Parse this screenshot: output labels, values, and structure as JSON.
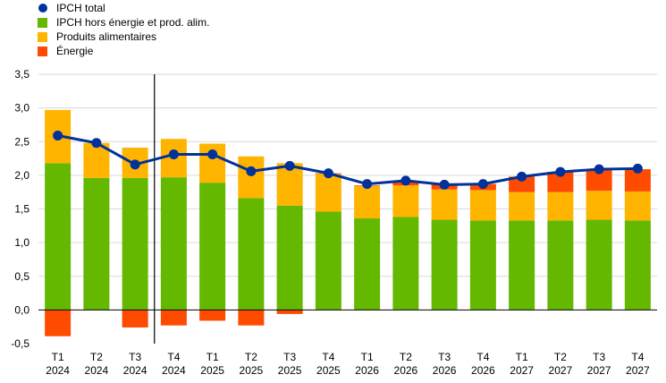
{
  "chart_data": {
    "type": "bar",
    "title": "",
    "xlabel": "",
    "ylabel": "",
    "ylim": [
      -0.5,
      3.5
    ],
    "yticks": [
      "3,5",
      "3,0",
      "2,5",
      "2,0",
      "1,5",
      "1,0",
      "0,5",
      "0,0",
      "-0,5"
    ],
    "ytick_values": [
      3.5,
      3.0,
      2.5,
      2.0,
      1.5,
      1.0,
      0.5,
      0.0,
      -0.5
    ],
    "grid": true,
    "legend_position": "top-left",
    "divider_after_index": 2,
    "categories": [
      {
        "quarter": "T1",
        "year": "2024"
      },
      {
        "quarter": "T2",
        "year": "2024"
      },
      {
        "quarter": "T3",
        "year": "2024"
      },
      {
        "quarter": "T4",
        "year": "2024"
      },
      {
        "quarter": "T1",
        "year": "2025"
      },
      {
        "quarter": "T2",
        "year": "2025"
      },
      {
        "quarter": "T3",
        "year": "2025"
      },
      {
        "quarter": "T4",
        "year": "2025"
      },
      {
        "quarter": "T1",
        "year": "2026"
      },
      {
        "quarter": "T2",
        "year": "2026"
      },
      {
        "quarter": "T3",
        "year": "2026"
      },
      {
        "quarter": "T4",
        "year": "2026"
      },
      {
        "quarter": "T1",
        "year": "2027"
      },
      {
        "quarter": "T2",
        "year": "2027"
      },
      {
        "quarter": "T3",
        "year": "2027"
      },
      {
        "quarter": "T4",
        "year": "2027"
      }
    ],
    "series": [
      {
        "name": "IPCH total",
        "kind": "line",
        "color": "#003299",
        "values": [
          2.59,
          2.48,
          2.16,
          2.31,
          2.31,
          2.06,
          2.14,
          2.03,
          1.87,
          1.92,
          1.86,
          1.87,
          1.98,
          2.05,
          2.09,
          2.1
        ]
      },
      {
        "name": "IPCH hors énergie et prod. alim.",
        "kind": "bar",
        "color": "#65b800",
        "values": [
          2.18,
          1.96,
          1.96,
          1.97,
          1.89,
          1.66,
          1.55,
          1.46,
          1.36,
          1.38,
          1.34,
          1.33,
          1.33,
          1.33,
          1.34,
          1.33
        ]
      },
      {
        "name": "Produits alimentaires",
        "kind": "bar",
        "color": "#ffb400",
        "values": [
          0.79,
          0.52,
          0.45,
          0.57,
          0.58,
          0.62,
          0.63,
          0.56,
          0.48,
          0.47,
          0.45,
          0.45,
          0.42,
          0.42,
          0.43,
          0.43
        ]
      },
      {
        "name": "Énergie",
        "kind": "bar",
        "color": "#ff4b00",
        "values": [
          -0.39,
          0.0,
          -0.26,
          -0.23,
          -0.16,
          -0.23,
          -0.06,
          0.01,
          0.01,
          0.06,
          0.07,
          0.09,
          0.23,
          0.3,
          0.31,
          0.33
        ]
      }
    ]
  }
}
